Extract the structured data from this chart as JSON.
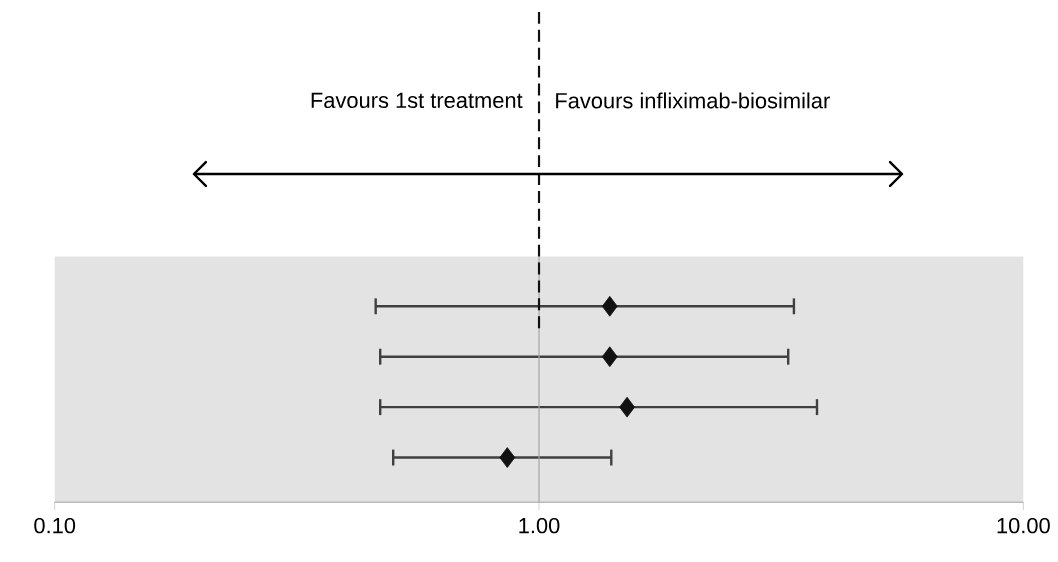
{
  "chart_data": {
    "type": "scatter",
    "orientation": "horizontal",
    "log": "x",
    "marker": "diamond",
    "color": "#111111",
    "categories": [
      null,
      null,
      null,
      null
    ],
    "values": [
      1.4,
      1.4,
      1.52,
      0.86
    ],
    "errors": [
      [
        0.46,
        3.36
      ],
      [
        0.47,
        3.27
      ],
      [
        0.47,
        3.75
      ],
      [
        0.5,
        1.41
      ]
    ],
    "xlim": [
      0.1,
      10
    ],
    "xticks": [
      {
        "value": 0.1,
        "label": "0.10"
      },
      {
        "value": 1,
        "label": "1.00"
      },
      {
        "value": 10,
        "label": "10.00"
      }
    ],
    "ref_lines": [
      {
        "axis": "x",
        "value": 1,
        "line_style": "solid",
        "color": "#a6a6a6"
      },
      {
        "axis": "x",
        "value": 1,
        "line_style": "dashed",
        "color": "#111111"
      }
    ],
    "annotations": [
      "Favours  1st treatment",
      "Favours  infliximab-biosimilar"
    ]
  }
}
